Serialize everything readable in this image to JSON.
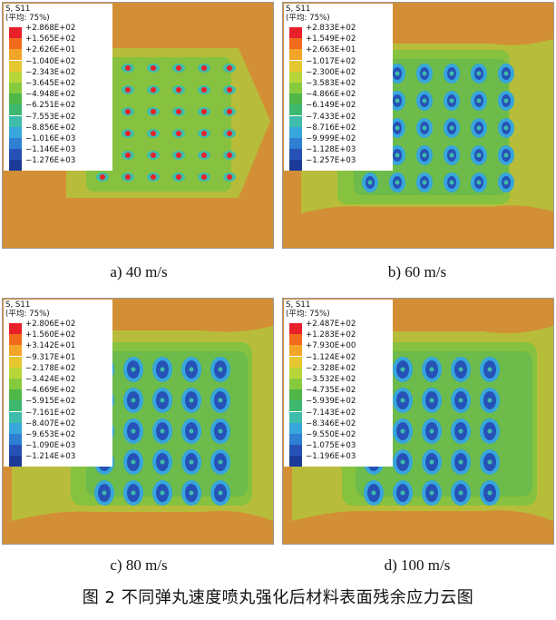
{
  "panels": [
    {
      "id": "a",
      "var_label": "S, S11",
      "avg_label": "(平均: 75%)",
      "legend_values": [
        "+2.868E+02",
        "+1.565E+02",
        "+2.626E+01",
        "−1.040E+02",
        "−2.343E+02",
        "−3.645E+02",
        "−4.948E+02",
        "−6.251E+02",
        "−7.553E+02",
        "−8.856E+02",
        "−1.016E+03",
        "−1.146E+03",
        "−1.276E+03"
      ],
      "caption": "a) 40 m/s"
    },
    {
      "id": "b",
      "var_label": "S, S11",
      "avg_label": "(平均: 75%)",
      "legend_values": [
        "+2.833E+02",
        "+1.549E+02",
        "+2.663E+01",
        "−1.017E+02",
        "−2.300E+02",
        "−3.583E+02",
        "−4.866E+02",
        "−6.149E+02",
        "−7.433E+02",
        "−8.716E+02",
        "−9.999E+02",
        "−1.128E+03",
        "−1.257E+03"
      ],
      "caption": "b) 60 m/s"
    },
    {
      "id": "c",
      "var_label": "S, S11",
      "avg_label": "(平均: 75%)",
      "legend_values": [
        "+2.806E+02",
        "+1.560E+02",
        "+3.142E+01",
        "−9.317E+01",
        "−2.178E+02",
        "−3.424E+02",
        "−4.669E+02",
        "−5.915E+02",
        "−7.161E+02",
        "−8.407E+02",
        "−9.653E+02",
        "−1.090E+03",
        "−1.214E+03"
      ],
      "caption": "c) 80 m/s"
    },
    {
      "id": "d",
      "var_label": "S, S11",
      "avg_label": "(平均: 75%)",
      "legend_values": [
        "+2.487E+02",
        "+1.283E+02",
        "+7.930E+00",
        "−1.124E+02",
        "−2.328E+02",
        "−3.532E+02",
        "−4.735E+02",
        "−5.939E+02",
        "−7.143E+02",
        "−8.346E+02",
        "−9.550E+02",
        "−1.075E+03",
        "−1.196E+03"
      ],
      "caption": "d) 100 m/s"
    }
  ],
  "legend_colors": [
    "#e8202a",
    "#f26a1c",
    "#f3a528",
    "#e6c72f",
    "#b8d63a",
    "#86cb3c",
    "#4fb748",
    "#3db86e",
    "#3fbcaa",
    "#37a6db",
    "#2f7fd3",
    "#2652b7",
    "#1c3a9a"
  ],
  "figure_caption": "图 2   不同弹丸速度喷丸强化后材料表面残余应力云图"
}
